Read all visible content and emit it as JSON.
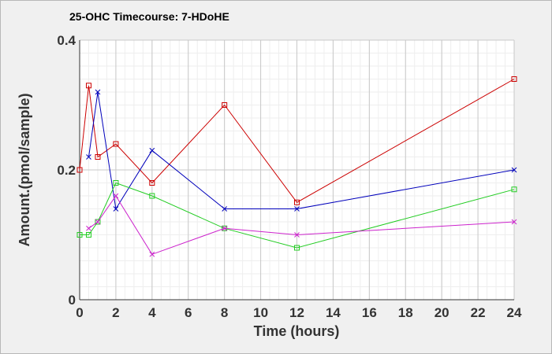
{
  "chart_data": {
    "type": "line",
    "title": "25-OHC Timecourse: 7-HDoHE",
    "xlabel": "Time (hours)",
    "ylabel": "Amount.(pmol/sample)",
    "xlim": [
      0,
      24
    ],
    "ylim": [
      0,
      0.4
    ],
    "x_ticks": [
      "0",
      "2",
      "4",
      "6",
      "8",
      "10",
      "12",
      "14",
      "16",
      "18",
      "20",
      "22",
      "24"
    ],
    "y_ticks": [
      "0",
      "0.2",
      "0.4"
    ],
    "grid": true,
    "series": [
      {
        "color": "#cc0000",
        "marker": "square",
        "x": [
          0,
          0.5,
          1,
          2,
          4,
          8,
          12,
          24
        ],
        "y": [
          0.2,
          0.33,
          0.22,
          0.24,
          0.18,
          0.3,
          0.15,
          0.34
        ]
      },
      {
        "color": "#0000bb",
        "marker": "x",
        "x": [
          0.5,
          1,
          2,
          4,
          8,
          12,
          24
        ],
        "y": [
          0.22,
          0.32,
          0.14,
          0.23,
          0.14,
          0.14,
          0.2
        ]
      },
      {
        "color": "#22cc22",
        "marker": "square",
        "x": [
          0,
          0.5,
          1,
          2,
          4,
          8,
          12,
          24
        ],
        "y": [
          0.1,
          0.1,
          0.12,
          0.18,
          0.16,
          0.11,
          0.08,
          0.17
        ]
      },
      {
        "color": "#cc22cc",
        "marker": "x",
        "x": [
          0.5,
          1,
          2,
          4,
          8,
          12,
          24
        ],
        "y": [
          0.11,
          0.12,
          0.16,
          0.07,
          0.11,
          0.1,
          0.12
        ]
      }
    ]
  }
}
